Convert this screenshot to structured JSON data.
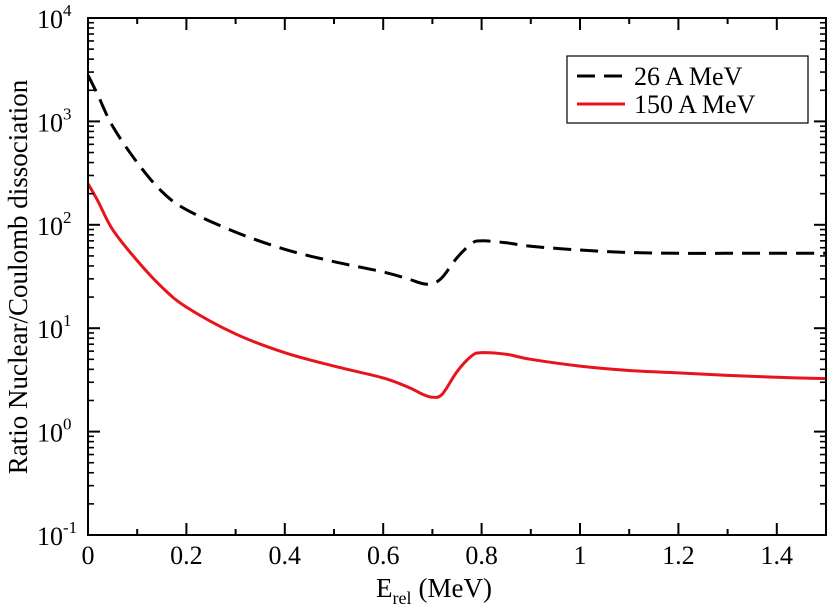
{
  "chart_data": {
    "type": "line",
    "title": "",
    "xlabel": "E",
    "xlabel_subscript": "rel",
    "xlabel_unit": "(MeV)",
    "ylabel": "Ratio Nuclear/Coulomb dissociation",
    "xlim": [
      0,
      1.5
    ],
    "ylim_log10": [
      -1,
      4
    ],
    "y_scale": "log",
    "grid": false,
    "legend_position": "top-right",
    "x_ticks": [
      {
        "value": 0,
        "label": "0"
      },
      {
        "value": 0.2,
        "label": "0.2"
      },
      {
        "value": 0.4,
        "label": "0.4"
      },
      {
        "value": 0.6,
        "label": "0.6"
      },
      {
        "value": 0.8,
        "label": "0.8"
      },
      {
        "value": 1.0,
        "label": "1"
      },
      {
        "value": 1.2,
        "label": "1.2"
      },
      {
        "value": 1.4,
        "label": "1.4"
      }
    ],
    "y_ticks": [
      {
        "exp": -1,
        "base": "10",
        "exponent": "-1"
      },
      {
        "exp": 0,
        "base": "10",
        "exponent": "0"
      },
      {
        "exp": 1,
        "base": "10",
        "exponent": "1"
      },
      {
        "exp": 2,
        "base": "10",
        "exponent": "2"
      },
      {
        "exp": 3,
        "base": "10",
        "exponent": "3"
      },
      {
        "exp": 4,
        "base": "10",
        "exponent": "4"
      }
    ],
    "series": [
      {
        "name": "26 A MeV",
        "color": "#000000",
        "dash": "dashed",
        "x": [
          0.0,
          0.02,
          0.05,
          0.1,
          0.15,
          0.2,
          0.3,
          0.4,
          0.5,
          0.6,
          0.65,
          0.68,
          0.7,
          0.72,
          0.75,
          0.78,
          0.8,
          0.85,
          0.9,
          1.0,
          1.1,
          1.2,
          1.3,
          1.4,
          1.5
        ],
        "y": [
          2800,
          1800,
          900,
          400,
          210,
          140,
          85,
          58,
          44,
          35,
          30,
          27,
          27,
          31,
          48,
          66,
          70,
          67,
          62,
          57,
          54,
          53,
          53,
          53,
          53
        ]
      },
      {
        "name": "150 A MeV",
        "color": "#e8141c",
        "dash": "solid",
        "x": [
          0.0,
          0.02,
          0.05,
          0.1,
          0.15,
          0.2,
          0.3,
          0.4,
          0.5,
          0.6,
          0.65,
          0.68,
          0.7,
          0.72,
          0.75,
          0.78,
          0.8,
          0.85,
          0.9,
          1.0,
          1.1,
          1.2,
          1.3,
          1.4,
          1.5
        ],
        "y": [
          250,
          170,
          90,
          45,
          25,
          16,
          8.8,
          5.8,
          4.3,
          3.3,
          2.7,
          2.3,
          2.15,
          2.3,
          3.8,
          5.4,
          5.8,
          5.6,
          5.0,
          4.3,
          3.9,
          3.7,
          3.5,
          3.35,
          3.25
        ]
      }
    ]
  }
}
